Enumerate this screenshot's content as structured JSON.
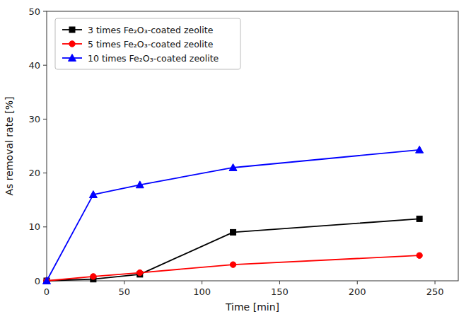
{
  "chart_data": {
    "type": "line",
    "x": [
      0,
      30,
      60,
      120,
      240
    ],
    "series": [
      {
        "name": "3 times Fe₂O₃-coated zeolite",
        "color": "black",
        "marker": "square",
        "values": [
          0,
          0.3,
          1.2,
          9.0,
          11.5
        ]
      },
      {
        "name": "5 times Fe₂O₃-coated zeolite",
        "color": "red",
        "marker": "circle",
        "values": [
          0,
          0.8,
          1.5,
          3.0,
          4.7
        ]
      },
      {
        "name": "10 times Fe₂O₃-coated zeolite",
        "color": "blue",
        "marker": "triangle",
        "values": [
          0,
          16.0,
          17.8,
          21.0,
          24.3
        ]
      }
    ],
    "xlabel": "Time [min]",
    "ylabel": "As removal rate [%]",
    "xlim": [
      0,
      265
    ],
    "ylim": [
      0,
      50
    ],
    "xticks": [
      0,
      50,
      100,
      150,
      200,
      250
    ],
    "yticks": [
      0,
      10,
      20,
      30,
      40,
      50
    ],
    "legend": "upper left",
    "grid": false
  }
}
